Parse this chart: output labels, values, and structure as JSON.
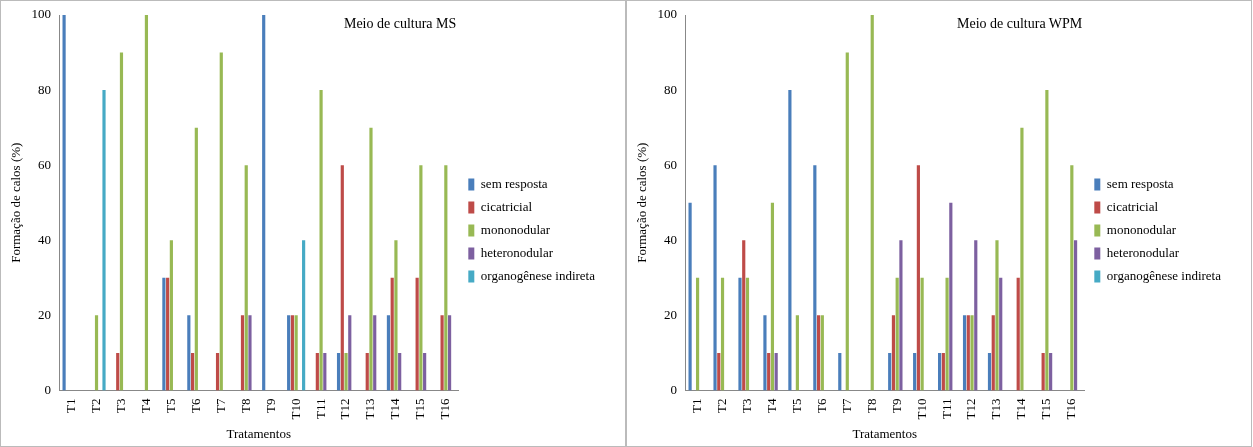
{
  "chart_data": [
    {
      "type": "bar",
      "title": "Meio de cultura MS",
      "xlabel": "Tratamentos",
      "ylabel": "Formação de calos (%)",
      "categories": [
        "T1",
        "T2",
        "T3",
        "T4",
        "T5",
        "T6",
        "T7",
        "T8",
        "T9",
        "T10",
        "T11",
        "T12",
        "T13",
        "T14",
        "T15",
        "T16"
      ],
      "ylim": [
        0,
        100
      ],
      "yticks": [
        0,
        20,
        40,
        60,
        80,
        100
      ],
      "grid": false,
      "legend": "right",
      "series": [
        {
          "name": "sem resposta",
          "color": "#4a7ebb",
          "values": [
            100,
            0,
            0,
            0,
            30,
            20,
            0,
            0,
            100,
            20,
            0,
            10,
            0,
            20,
            0,
            0
          ]
        },
        {
          "name": "cicatricial",
          "color": "#be4b48",
          "values": [
            0,
            0,
            10,
            0,
            30,
            10,
            10,
            20,
            0,
            20,
            10,
            60,
            10,
            30,
            30,
            20
          ]
        },
        {
          "name": "mononodular",
          "color": "#98b954",
          "values": [
            0,
            20,
            90,
            100,
            40,
            70,
            90,
            60,
            0,
            20,
            80,
            10,
            70,
            40,
            60,
            60
          ]
        },
        {
          "name": "heteronodular",
          "color": "#7d60a0",
          "values": [
            0,
            0,
            0,
            0,
            0,
            0,
            0,
            20,
            0,
            0,
            10,
            20,
            20,
            10,
            10,
            20
          ]
        },
        {
          "name": "organogênese indireta",
          "color": "#46aac5",
          "values": [
            0,
            80,
            0,
            0,
            0,
            0,
            0,
            0,
            0,
            40,
            0,
            0,
            0,
            0,
            0,
            0
          ]
        }
      ]
    },
    {
      "type": "bar",
      "title": "Meio de cultura WPM",
      "xlabel": "Tratamentos",
      "ylabel": "Formação de calos (%)",
      "categories": [
        "T1",
        "T2",
        "T3",
        "T4",
        "T5",
        "T6",
        "T7",
        "T8",
        "T9",
        "T10",
        "T11",
        "T12",
        "T13",
        "T14",
        "T15",
        "T16"
      ],
      "ylim": [
        0,
        100
      ],
      "yticks": [
        0,
        20,
        40,
        60,
        80,
        100
      ],
      "grid": false,
      "legend": "right",
      "series": [
        {
          "name": "sem resposta",
          "color": "#4a7ebb",
          "values": [
            50,
            60,
            30,
            20,
            80,
            60,
            10,
            0,
            10,
            10,
            10,
            20,
            10,
            0,
            0,
            0
          ]
        },
        {
          "name": "cicatricial",
          "color": "#be4b48",
          "values": [
            0,
            10,
            40,
            10,
            0,
            20,
            0,
            0,
            20,
            60,
            10,
            20,
            20,
            30,
            10,
            0
          ]
        },
        {
          "name": "mononodular",
          "color": "#98b954",
          "values": [
            30,
            30,
            30,
            50,
            20,
            20,
            90,
            100,
            30,
            30,
            30,
            20,
            40,
            70,
            80,
            60
          ]
        },
        {
          "name": "heteronodular",
          "color": "#7d60a0",
          "values": [
            0,
            0,
            0,
            10,
            0,
            0,
            0,
            0,
            40,
            0,
            50,
            40,
            30,
            0,
            10,
            40
          ]
        },
        {
          "name": "organogênese indireta",
          "color": "#46aac5",
          "values": [
            0,
            0,
            0,
            0,
            0,
            0,
            0,
            0,
            0,
            0,
            0,
            0,
            0,
            0,
            0,
            0
          ]
        }
      ]
    }
  ]
}
